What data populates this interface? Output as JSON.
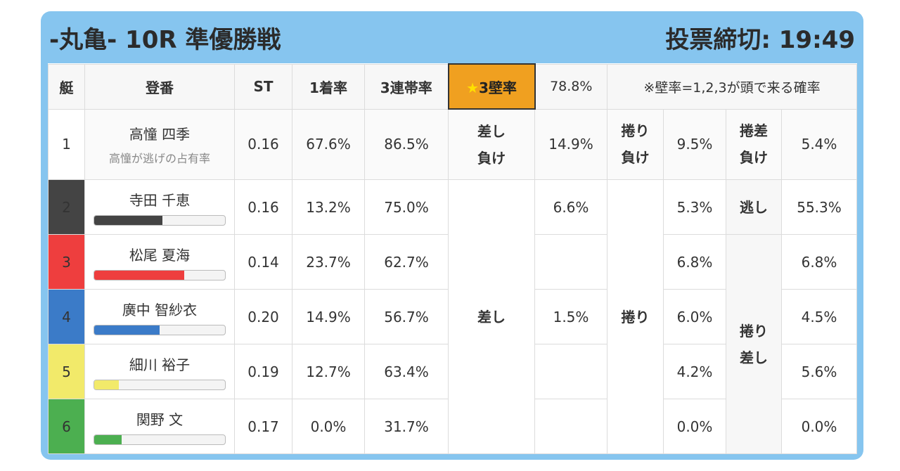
{
  "header": {
    "title": "-丸亀- 10R 準優勝戦",
    "deadline": "投票締切: 19:49"
  },
  "columns": {
    "boat": "艇",
    "racer": "登番",
    "st": "ST",
    "win1": "1着率",
    "top3": "3連帯率",
    "wall_star": "★",
    "wall_label": "3壁率",
    "wall_value": "78.8%",
    "note": "※壁率=1,2,3が頭で来る確率"
  },
  "labels": {
    "sashi_make_1": "差し",
    "sashi_make_2": "負け",
    "makuri_make_1": "捲り",
    "makuri_make_2": "負け",
    "makurisashi_make_1": "捲差",
    "makurisashi_make_2": "負け",
    "nige": "逃し",
    "sashi": "差し",
    "makuri": "捲り",
    "makurisashi_1": "捲り",
    "makurisashi_2": "差し"
  },
  "rows": [
    {
      "boat": "1",
      "name": "高憧 四季",
      "sub": "高憧が逃げの占有率",
      "st": "0.16",
      "win1": "67.6%",
      "top3": "86.5%",
      "sashi_make": "14.9%",
      "makuri_make": "9.5%",
      "makurisashi_make": "5.4%"
    },
    {
      "boat": "2",
      "name": "寺田 千恵",
      "bar_pct": 52,
      "bar_color": "#444444",
      "st": "0.16",
      "win1": "13.2%",
      "top3": "75.0%",
      "v1": "6.6%",
      "v2": "5.3%",
      "v3": "55.3%"
    },
    {
      "boat": "3",
      "name": "松尾 夏海",
      "bar_pct": 69,
      "bar_color": "#ee3e3e",
      "st": "0.14",
      "win1": "23.7%",
      "top3": "62.7%",
      "v2": "6.8%",
      "v3": "6.8%"
    },
    {
      "boat": "4",
      "name": "廣中 智紗衣",
      "bar_pct": 50,
      "bar_color": "#3b7bc8",
      "st": "0.20",
      "win1": "14.9%",
      "top3": "56.7%",
      "v1": "1.5%",
      "v2": "6.0%",
      "v3": "4.5%"
    },
    {
      "boat": "5",
      "name": "細川 裕子",
      "bar_pct": 19,
      "bar_color": "#f2ea6a",
      "st": "0.19",
      "win1": "12.7%",
      "top3": "63.4%",
      "v2": "4.2%",
      "v3": "5.6%"
    },
    {
      "boat": "6",
      "name": "関野 文",
      "bar_pct": 21,
      "bar_color": "#4caf50",
      "st": "0.17",
      "win1": "0.0%",
      "top3": "31.7%",
      "v2": "0.0%",
      "v3": "0.0%"
    }
  ]
}
